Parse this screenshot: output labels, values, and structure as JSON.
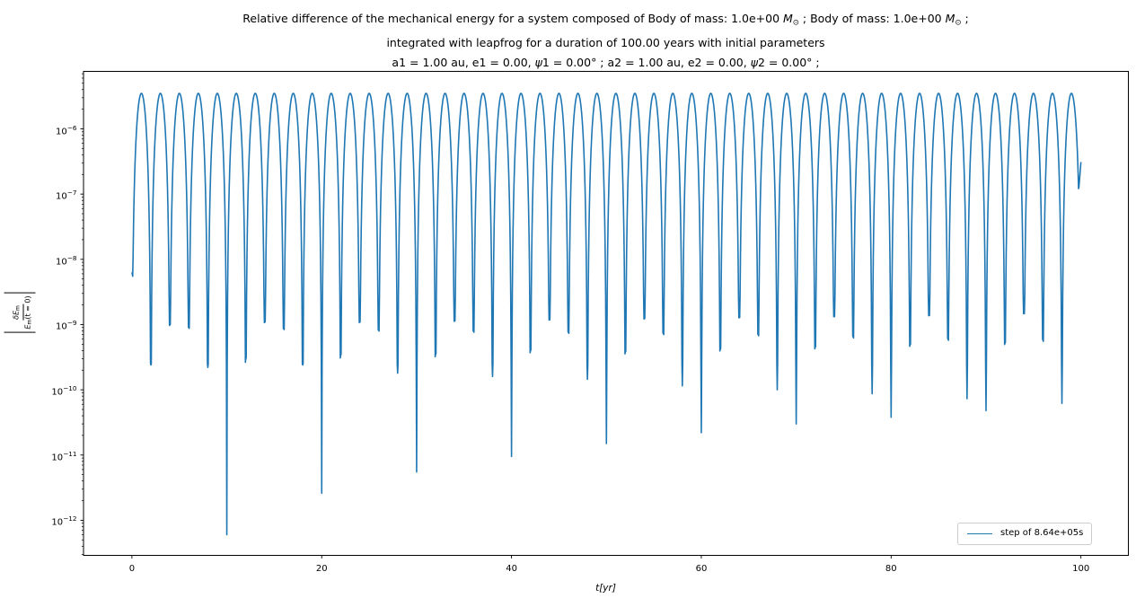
{
  "chart_data": {
    "type": "line",
    "title": {
      "line1_parts": {
        "pre": "Relative difference of the mechanical energy for a system composed of Body of mass: 1.0e+00 ",
        "m1": "M",
        "sub1": "⊙",
        "mid": " ; Body of mass: 1.0e+00 ",
        "m2": "M",
        "sub2": "⊙",
        "end": " ;"
      },
      "line2": "integrated with leapfrog for a duration of 100.00 years with initial parameters",
      "line3_parts": {
        "p1": "a1 = 1.00 au, e1 = 0.00, ",
        "psi1": "ψ",
        "p2": "1 = 0.00° ; a2 = 1.00 au, e2 = 0.00, ",
        "psi2": "ψ",
        "p3": "2 = 0.00° ;"
      }
    },
    "xlabel": "t[yr]",
    "ylabel": {
      "num_main": "δE",
      "num_sub": "m",
      "den_main": "E",
      "den_sub": "m",
      "den_rest": "(t = 0)"
    },
    "legend": {
      "label": "step of 8.64e+05s",
      "position": "lower right"
    },
    "line_color": "#1f77b4",
    "frame_color": "#000000",
    "legend_border_color": "#cccccc",
    "grid": "off",
    "y_scale": "log",
    "y_tick_base": "10",
    "y_ticks": [
      {
        "v": 1e-06,
        "exp": "−6"
      },
      {
        "v": 1e-07,
        "exp": "−7"
      },
      {
        "v": 1e-08,
        "exp": "−8"
      },
      {
        "v": 1e-09,
        "exp": "−9"
      },
      {
        "v": 1e-10,
        "exp": "−10"
      },
      {
        "v": 1e-11,
        "exp": "−11"
      },
      {
        "v": 1e-12,
        "exp": "−12"
      }
    ],
    "x_ticks": [
      {
        "v": 0,
        "label": "0"
      },
      {
        "v": 20,
        "label": "20"
      },
      {
        "v": 40,
        "label": "40"
      },
      {
        "v": 60,
        "label": "60"
      },
      {
        "v": 80,
        "label": "80"
      },
      {
        "v": 100,
        "label": "100"
      }
    ],
    "xlim": [
      -5.1,
      105.0
    ],
    "ylog_lim": [
      -12.538,
      -5.119
    ],
    "peak_value": 3.5e-06,
    "start_point": {
      "t": 0,
      "value": 6.3e-09
    },
    "end_point": {
      "t": 100,
      "value": 3.1e-07
    },
    "dips": [
      [
        2,
        2.4e-10
      ],
      [
        4,
        1e-09
      ],
      [
        6,
        9e-10
      ],
      [
        8,
        2.2e-10
      ],
      [
        10,
        6e-13
      ],
      [
        12,
        3e-10
      ],
      [
        14,
        1.1e-09
      ],
      [
        16,
        8.6e-10
      ],
      [
        18,
        2.4e-10
      ],
      [
        20,
        2.6e-12
      ],
      [
        22,
        3.4e-10
      ],
      [
        24,
        1.1e-09
      ],
      [
        26,
        8.2e-10
      ],
      [
        28,
        1.8e-10
      ],
      [
        30,
        5.5e-12
      ],
      [
        32,
        3.5e-10
      ],
      [
        34,
        1.15e-09
      ],
      [
        36,
        7.9e-10
      ],
      [
        38,
        1.6e-10
      ],
      [
        40,
        9.5e-12
      ],
      [
        42,
        4e-10
      ],
      [
        44,
        1.2e-09
      ],
      [
        46,
        7.6e-10
      ],
      [
        48,
        1.45e-10
      ],
      [
        50,
        1.5e-11
      ],
      [
        52,
        3.8e-10
      ],
      [
        54,
        1.25e-09
      ],
      [
        56,
        7.3e-10
      ],
      [
        58,
        1.15e-10
      ],
      [
        60,
        2.2e-11
      ],
      [
        62,
        4.2e-10
      ],
      [
        64,
        1.3e-09
      ],
      [
        66,
        7e-10
      ],
      [
        68,
        1e-10
      ],
      [
        70,
        3e-11
      ],
      [
        72,
        4.5e-10
      ],
      [
        74,
        1.35e-09
      ],
      [
        76,
        6.5e-10
      ],
      [
        78,
        8.7e-11
      ],
      [
        80,
        3.8e-11
      ],
      [
        82,
        4.9e-10
      ],
      [
        84,
        1.4e-09
      ],
      [
        86,
        6e-10
      ],
      [
        88,
        7.3e-11
      ],
      [
        90,
        4.8e-11
      ],
      [
        92,
        5.2e-10
      ],
      [
        94,
        1.5e-09
      ],
      [
        96,
        5.8e-10
      ],
      [
        98,
        6.2e-11
      ]
    ]
  }
}
